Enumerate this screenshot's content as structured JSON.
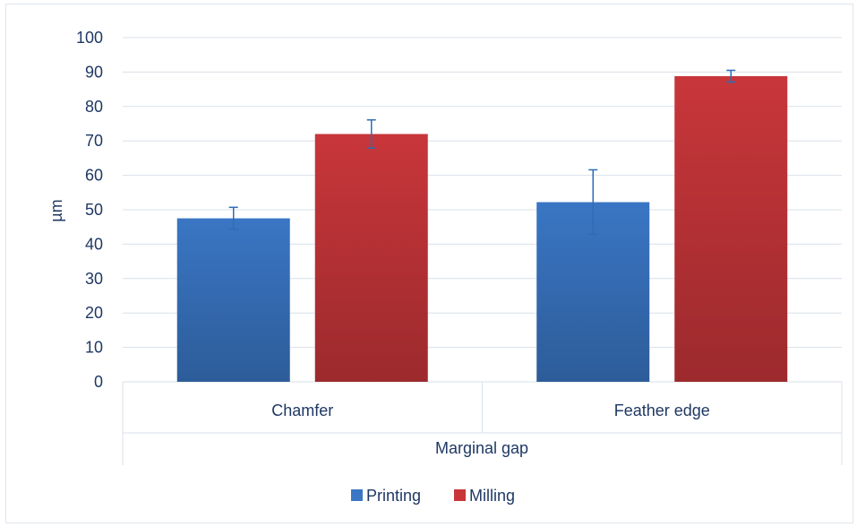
{
  "chart_data": {
    "type": "bar",
    "categories": [
      "Chamfer",
      "Feather edge"
    ],
    "group_label": "Marginal gap",
    "series": [
      {
        "name": "Printing",
        "values": [
          47.5,
          52.2
        ],
        "error": [
          3.2,
          9.4
        ]
      },
      {
        "name": "Milling",
        "values": [
          72.0,
          88.8
        ],
        "error": [
          4.1,
          1.7
        ]
      }
    ],
    "title": "",
    "xlabel": "",
    "ylabel": "µm",
    "ylim": [
      0,
      100
    ],
    "yticks": [
      0,
      10,
      20,
      30,
      40,
      50,
      60,
      70,
      80,
      90,
      100
    ],
    "grid": true,
    "legend_position": "bottom",
    "colors": {
      "Printing": "#3a76c4",
      "Milling": "#c8363a",
      "grid": "#d9e1ea",
      "text": "#1f3864",
      "error_bar": "#2e6db4"
    }
  }
}
